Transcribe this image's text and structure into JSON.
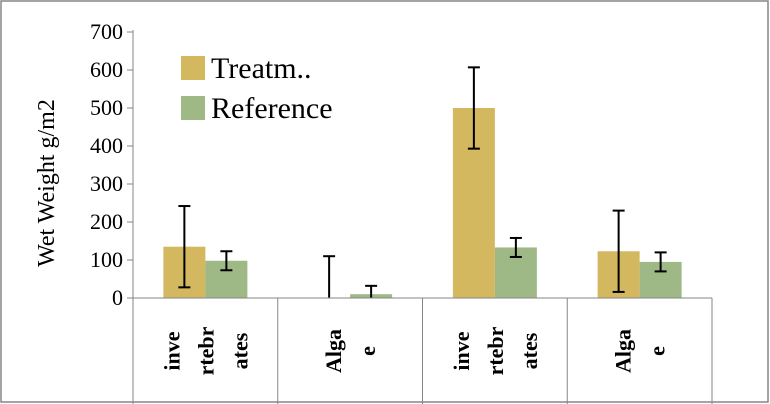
{
  "chart_data": {
    "type": "bar",
    "ylabel": "Wet Weight g/m2",
    "xlabel": "",
    "ylim": [
      0,
      700
    ],
    "yticks": [
      0,
      100,
      200,
      300,
      400,
      500,
      600,
      700
    ],
    "grid": false,
    "legend_position": "top-left",
    "categories": [
      [
        "inve",
        "rtebr",
        "ates"
      ],
      [
        "Alga",
        "e"
      ],
      [
        "inve",
        "rtebr",
        "ates"
      ],
      [
        "Alga",
        "e"
      ]
    ],
    "series": [
      {
        "name": "Treatm..",
        "color": "#D4B85F",
        "values": [
          135,
          0,
          500,
          123
        ],
        "error": [
          107,
          110,
          107,
          107
        ]
      },
      {
        "name": "Reference",
        "color": "#9EB886",
        "values": [
          98,
          10,
          133,
          95
        ],
        "error": [
          25,
          22,
          25,
          25
        ]
      }
    ]
  }
}
